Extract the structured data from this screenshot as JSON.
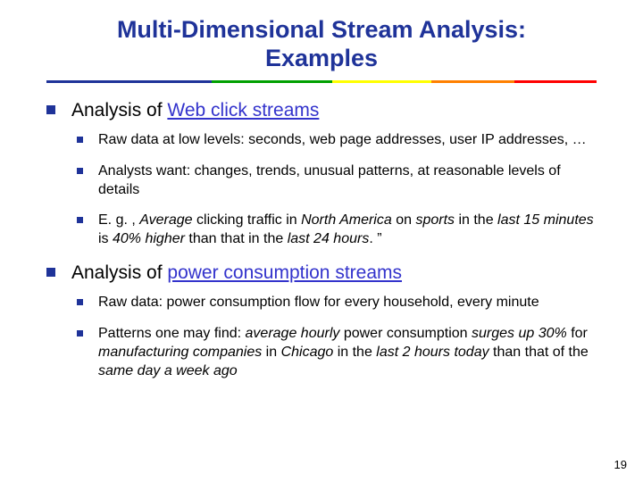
{
  "title_line1": "Multi-Dimensional Stream Analysis:",
  "title_line2": "Examples",
  "title_color": "#1f3399",
  "title_fontsize": 27,
  "bullet_color_lvl1": "#1f3399",
  "bullet_color_lvl2": "#1f3399",
  "rainbow_colors": [
    "#1f3399",
    "#00a000",
    "#ffff00",
    "#ff8000",
    "#ff0000"
  ],
  "rainbow_weights": [
    30,
    22,
    18,
    15,
    15
  ],
  "sections": [
    {
      "heading_pre": "Analysis of ",
      "heading_link": "Web click streams",
      "items": [
        {
          "text": "Raw data at low levels: seconds, web page addresses, user IP addresses, …"
        },
        {
          "text": "Analysts want: changes, trends, unusual patterns, at reasonable levels of details"
        },
        {
          "html": "E. g. , <i>Average</i> clicking traffic in <i>North America</i> on <i>sports</i> in the <i>last 15 minutes</i> is <i>40% higher</i> than that in the <i>last 24 hours</i>. ”"
        }
      ]
    },
    {
      "heading_pre": "Analysis of ",
      "heading_link": "power consumption streams",
      "items": [
        {
          "text": "Raw data: power consumption flow for every household, every minute"
        },
        {
          "html": "Patterns one may find: <i>average hourly</i> power consumption <i>surges up 30%</i> for <i>manufacturing companies</i> in <i>Chicago</i> in the <i>last 2 hours today</i> than that of the <i>same day a week ago</i>"
        }
      ]
    }
  ],
  "page_number": "19"
}
